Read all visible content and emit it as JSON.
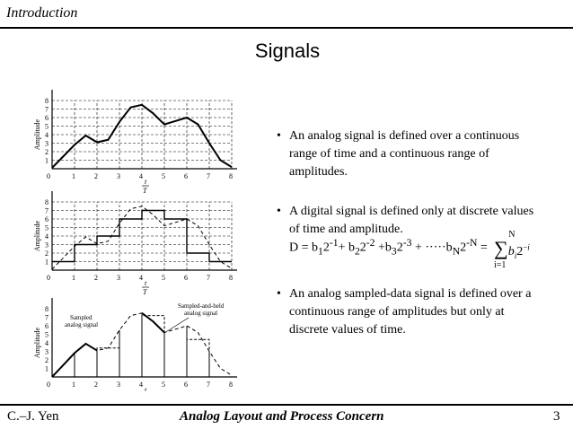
{
  "header": {
    "section": "Introduction"
  },
  "title": "Signals",
  "bullets": [
    {
      "mark": "•",
      "text": "An analog signal is defined over a continuous range of time and a continuous range of amplitudes."
    },
    {
      "mark": "•",
      "text": "A digital signal is defined only at discrete values of time and amplitude."
    },
    {
      "mark": "•",
      "text": "An analog sampled-data signal is defined over a continuous range of amplitudes but only at discrete values of time."
    }
  ],
  "formula": {
    "lhs": "D = b",
    "sum_upper": "N",
    "sum_lower": "i=1"
  },
  "figure": {
    "y_axis_label": "Amplitude",
    "x_axis_label_num": "t",
    "x_axis_label_den": "T",
    "x_ticks": [
      "0",
      "1",
      "2",
      "3",
      "4",
      "5",
      "6",
      "7",
      "8"
    ],
    "y_ticks": [
      "1",
      "2",
      "3",
      "4",
      "5",
      "6",
      "7",
      "8"
    ],
    "labels": {
      "sampled": "Sampled analog signal",
      "sampled_held": "Sampled-and-held analog signal"
    }
  },
  "footer": {
    "author": "C.–J. Yen",
    "course": "Analog Layout and Process Concern",
    "page": "3"
  }
}
